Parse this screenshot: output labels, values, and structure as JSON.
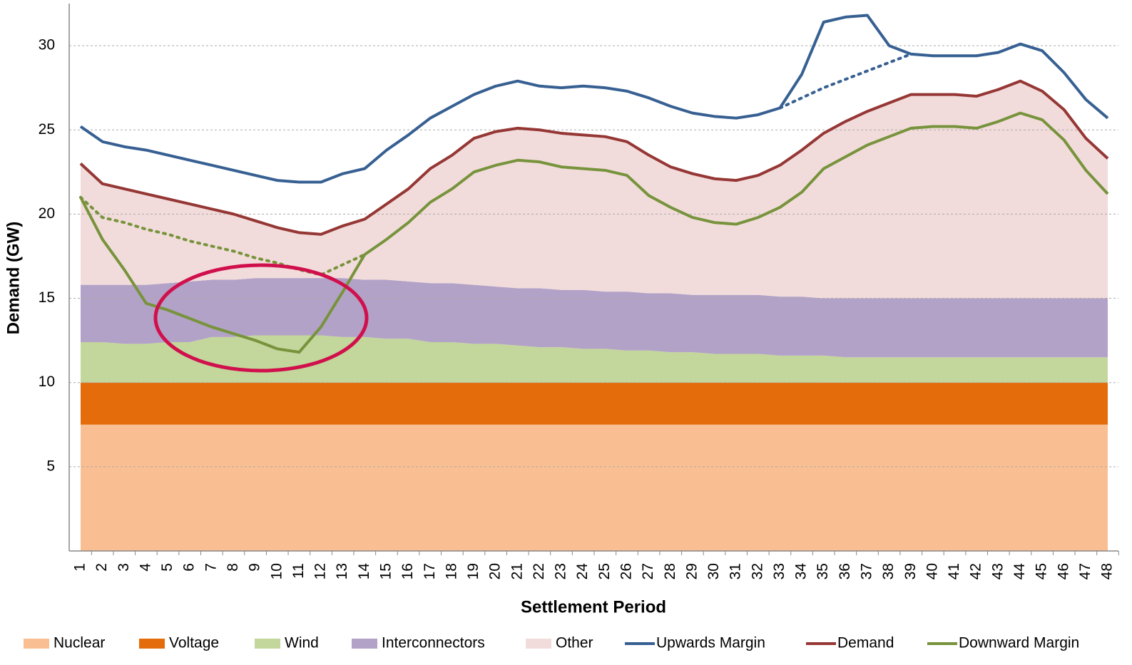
{
  "chart_data": {
    "type": "stacked-area-line",
    "y_label": "Demand (GW)",
    "x_label": "Settlement Period",
    "categories": [
      "1",
      "2",
      "3",
      "4",
      "5",
      "6",
      "7",
      "8",
      "9",
      "10",
      "11",
      "12",
      "13",
      "14",
      "15",
      "16",
      "17",
      "18",
      "19",
      "20",
      "21",
      "22",
      "23",
      "24",
      "25",
      "26",
      "27",
      "28",
      "29",
      "30",
      "31",
      "32",
      "33",
      "34",
      "35",
      "36",
      "37",
      "38",
      "39",
      "40",
      "41",
      "42",
      "43",
      "44",
      "45",
      "46",
      "47",
      "48"
    ],
    "ylim": [
      0,
      32.5
    ],
    "yticks": [
      5,
      10,
      15,
      20,
      25,
      30
    ],
    "grid": true,
    "series": [
      {
        "name": "Nuclear",
        "kind": "area",
        "color": "#f9bf92",
        "values": [
          7.5,
          7.5,
          7.5,
          7.5,
          7.5,
          7.5,
          7.5,
          7.5,
          7.5,
          7.5,
          7.5,
          7.5,
          7.5,
          7.5,
          7.5,
          7.5,
          7.5,
          7.5,
          7.5,
          7.5,
          7.5,
          7.5,
          7.5,
          7.5,
          7.5,
          7.5,
          7.5,
          7.5,
          7.5,
          7.5,
          7.5,
          7.5,
          7.5,
          7.5,
          7.5,
          7.5,
          7.5,
          7.5,
          7.5,
          7.5,
          7.5,
          7.5,
          7.5,
          7.5,
          7.5,
          7.5,
          7.5,
          7.5
        ]
      },
      {
        "name": "Voltage",
        "kind": "area",
        "color": "#e46c0a",
        "values": [
          2.5,
          2.5,
          2.5,
          2.5,
          2.5,
          2.5,
          2.5,
          2.5,
          2.5,
          2.5,
          2.5,
          2.5,
          2.5,
          2.5,
          2.5,
          2.5,
          2.5,
          2.5,
          2.5,
          2.5,
          2.5,
          2.5,
          2.5,
          2.5,
          2.5,
          2.5,
          2.5,
          2.5,
          2.5,
          2.5,
          2.5,
          2.5,
          2.5,
          2.5,
          2.5,
          2.5,
          2.5,
          2.5,
          2.5,
          2.5,
          2.5,
          2.5,
          2.5,
          2.5,
          2.5,
          2.5,
          2.5,
          2.5
        ]
      },
      {
        "name": "Wind",
        "kind": "area",
        "color": "#c3d69b",
        "values": [
          2.4,
          2.4,
          2.3,
          2.3,
          2.4,
          2.4,
          2.7,
          2.7,
          2.8,
          2.8,
          2.8,
          2.8,
          2.7,
          2.7,
          2.6,
          2.6,
          2.4,
          2.4,
          2.3,
          2.3,
          2.2,
          2.1,
          2.1,
          2.0,
          2.0,
          1.9,
          1.9,
          1.8,
          1.8,
          1.7,
          1.7,
          1.7,
          1.6,
          1.6,
          1.6,
          1.5,
          1.5,
          1.5,
          1.5,
          1.5,
          1.5,
          1.5,
          1.5,
          1.5,
          1.5,
          1.5,
          1.5,
          1.5
        ]
      },
      {
        "name": "Interconnectors",
        "kind": "area",
        "color": "#b3a2c7",
        "values": [
          3.4,
          3.4,
          3.5,
          3.5,
          3.5,
          3.6,
          3.4,
          3.4,
          3.4,
          3.4,
          3.4,
          3.4,
          3.5,
          3.4,
          3.5,
          3.4,
          3.5,
          3.5,
          3.5,
          3.4,
          3.4,
          3.5,
          3.4,
          3.5,
          3.4,
          3.5,
          3.4,
          3.5,
          3.4,
          3.5,
          3.5,
          3.5,
          3.5,
          3.5,
          3.4,
          3.5,
          3.5,
          3.5,
          3.5,
          3.5,
          3.5,
          3.5,
          3.5,
          3.5,
          3.5,
          3.5,
          3.5,
          3.5
        ]
      },
      {
        "name": "Other",
        "kind": "area",
        "color": "#f2dcdb",
        "values": [
          7.2,
          6.0,
          5.7,
          5.4,
          5.0,
          4.6,
          4.2,
          3.9,
          3.4,
          3.0,
          2.7,
          2.6,
          3.1,
          3.6,
          4.5,
          5.5,
          6.8,
          7.6,
          8.7,
          9.2,
          9.5,
          9.4,
          9.3,
          9.2,
          9.2,
          8.9,
          8.2,
          7.5,
          7.2,
          6.9,
          6.8,
          7.1,
          7.8,
          8.7,
          9.8,
          10.5,
          11.1,
          11.6,
          12.1,
          12.1,
          12.1,
          12.0,
          12.4,
          12.9,
          12.3,
          11.2,
          9.5,
          8.3
        ]
      },
      {
        "name": "Upwards Margin",
        "kind": "line",
        "color": "#376092",
        "values": [
          25.2,
          24.3,
          24.0,
          23.8,
          23.5,
          23.2,
          22.9,
          22.6,
          22.3,
          22.0,
          21.9,
          21.9,
          22.4,
          22.7,
          23.8,
          24.7,
          25.7,
          26.4,
          27.1,
          27.6,
          27.9,
          27.6,
          27.5,
          27.6,
          27.5,
          27.3,
          26.9,
          26.4,
          26.0,
          25.8,
          25.7,
          25.9,
          26.3,
          28.3,
          31.4,
          31.7,
          31.8,
          30.0,
          29.5,
          29.4,
          29.4,
          29.4,
          29.6,
          30.1,
          29.7,
          28.4,
          26.8,
          25.7
        ]
      },
      {
        "name": "Demand",
        "kind": "line",
        "color": "#953735",
        "values": [
          23.0,
          21.8,
          21.5,
          21.2,
          20.9,
          20.6,
          20.3,
          20.0,
          19.6,
          19.2,
          18.9,
          18.8,
          19.3,
          19.7,
          20.6,
          21.5,
          22.7,
          23.5,
          24.5,
          24.9,
          25.1,
          25.0,
          24.8,
          24.7,
          24.6,
          24.3,
          23.5,
          22.8,
          22.4,
          22.1,
          22.0,
          22.3,
          22.9,
          23.8,
          24.8,
          25.5,
          26.1,
          26.6,
          27.1,
          27.1,
          27.1,
          27.0,
          27.4,
          27.9,
          27.3,
          26.2,
          24.5,
          23.3
        ]
      },
      {
        "name": "Downward Margin",
        "kind": "line",
        "color": "#77933c",
        "values": [
          21.0,
          18.5,
          16.7,
          14.7,
          14.3,
          13.8,
          13.3,
          12.9,
          12.5,
          12.0,
          11.8,
          13.3,
          15.4,
          17.6,
          18.5,
          19.5,
          20.7,
          21.5,
          22.5,
          22.9,
          23.2,
          23.1,
          22.8,
          22.7,
          22.6,
          22.3,
          21.1,
          20.4,
          19.8,
          19.5,
          19.4,
          19.8,
          20.4,
          21.3,
          22.7,
          23.4,
          24.1,
          24.6,
          25.1,
          25.2,
          25.2,
          25.1,
          25.5,
          26.0,
          25.6,
          24.4,
          22.6,
          21.2
        ]
      }
    ],
    "dotted": [
      {
        "color": "#376092",
        "values": [
          null,
          null,
          null,
          null,
          null,
          null,
          null,
          null,
          null,
          null,
          null,
          null,
          null,
          null,
          null,
          null,
          null,
          null,
          null,
          null,
          null,
          null,
          null,
          null,
          null,
          null,
          null,
          null,
          null,
          null,
          null,
          null,
          26.3,
          26.9,
          27.5,
          28.0,
          28.5,
          29.0,
          29.5,
          null,
          null,
          null,
          null,
          null,
          null,
          null,
          null,
          null
        ]
      },
      {
        "color": "#77933c",
        "values": [
          21.0,
          19.8,
          19.5,
          19.1,
          18.8,
          18.4,
          18.1,
          17.8,
          17.4,
          17.1,
          16.7,
          16.4,
          17.0,
          17.6,
          null,
          null,
          null,
          null,
          null,
          null,
          null,
          null,
          null,
          null,
          null,
          null,
          null,
          null,
          null,
          null,
          null,
          null,
          null,
          null,
          null,
          null,
          null,
          null,
          null,
          null,
          null,
          null,
          null,
          null,
          null,
          null,
          null,
          null
        ]
      }
    ]
  }
}
